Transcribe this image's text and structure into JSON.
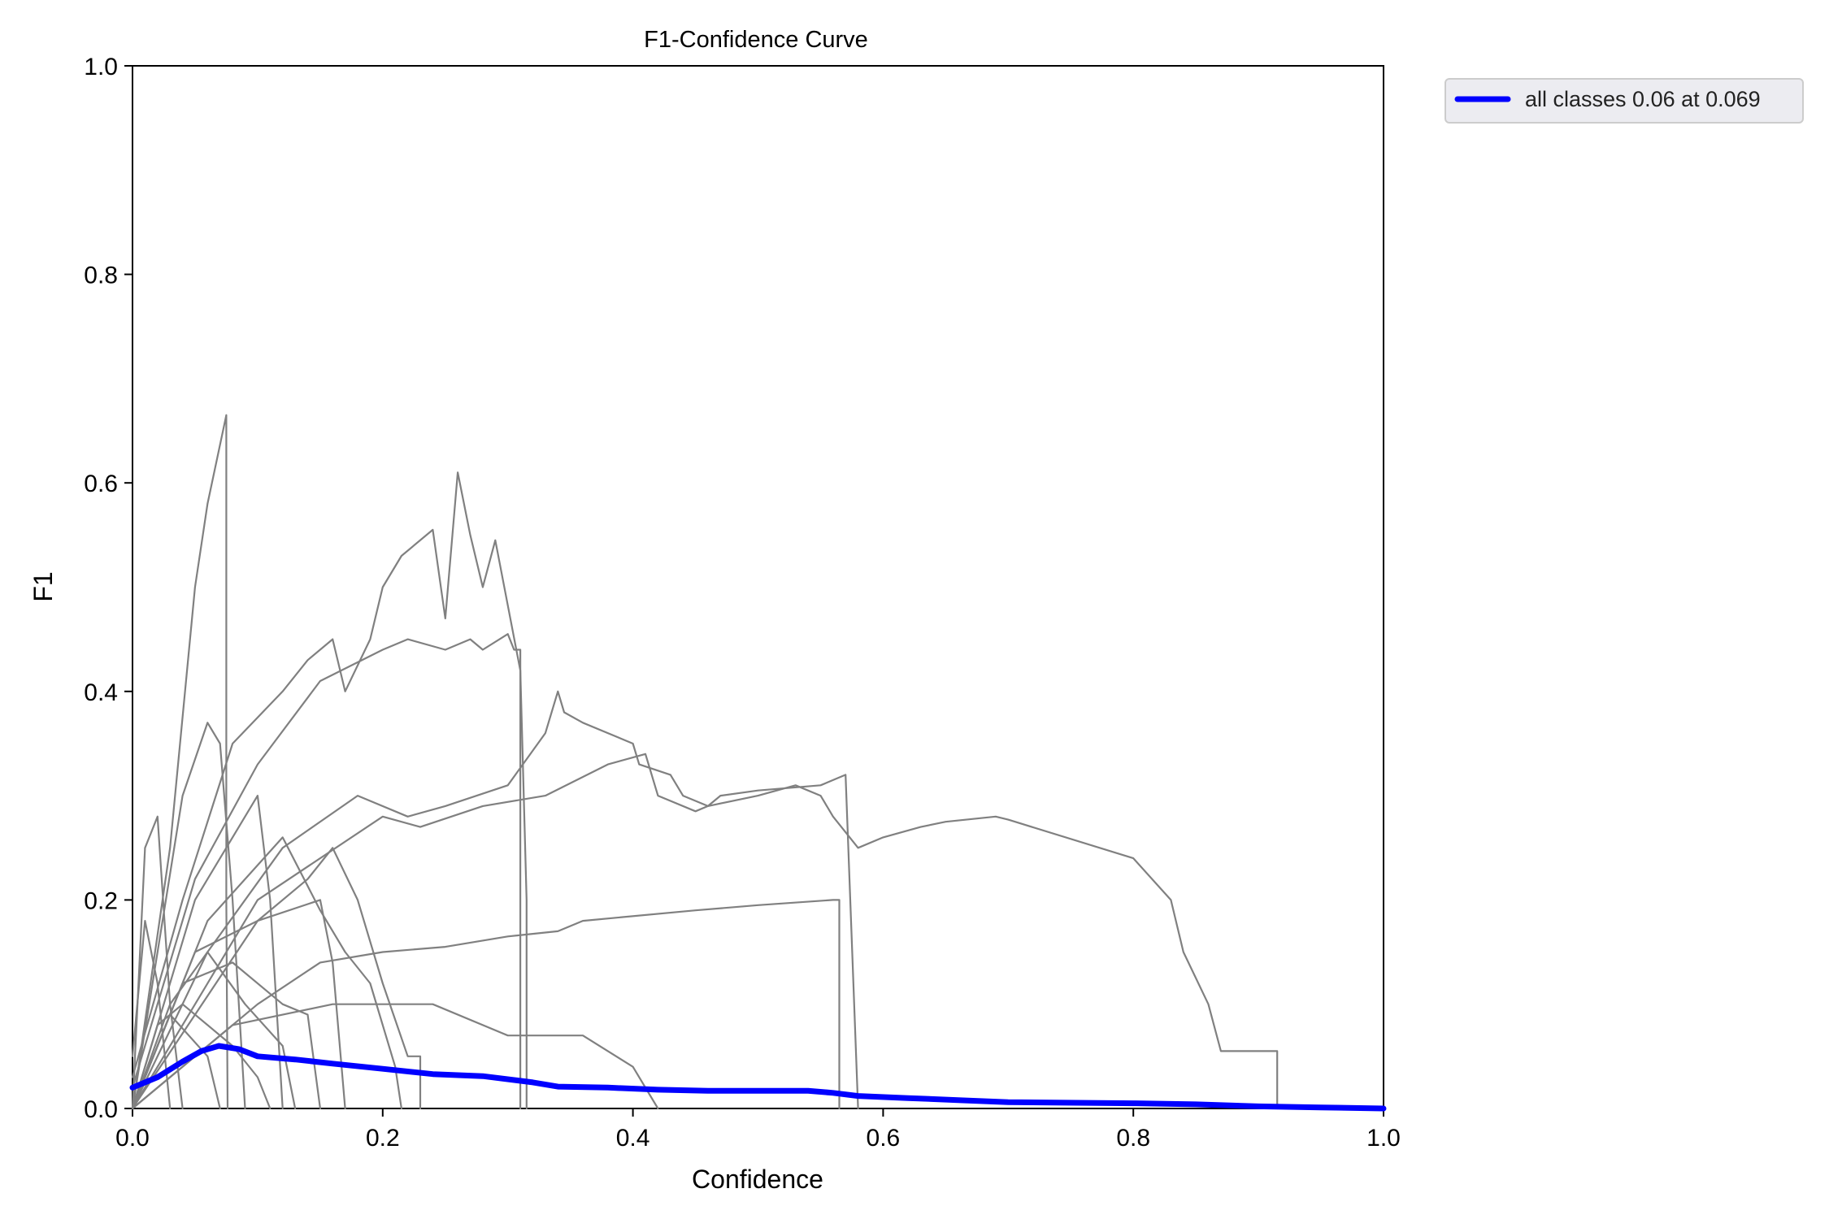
{
  "chart_data": {
    "type": "line",
    "title": "F1-Confidence Curve",
    "xlabel": "Confidence",
    "ylabel": "F1",
    "xlim": [
      0,
      1
    ],
    "ylim": [
      0,
      1
    ],
    "xticks": [
      "0.0",
      "0.2",
      "0.4",
      "0.6",
      "0.8",
      "1.0"
    ],
    "yticks": [
      "0.0",
      "0.2",
      "0.4",
      "0.6",
      "0.8",
      "1.0"
    ],
    "grid": false,
    "legend_position": "outside-top-right",
    "colors": {
      "class_curves": "#808080",
      "all_classes": "#0000ff"
    },
    "series": [
      {
        "name": "all classes 0.06 at 0.069",
        "color": "#0000ff",
        "x": [
          0.0,
          0.02,
          0.04,
          0.055,
          0.069,
          0.085,
          0.1,
          0.13,
          0.16,
          0.2,
          0.24,
          0.28,
          0.32,
          0.34,
          0.38,
          0.42,
          0.46,
          0.5,
          0.54,
          0.56,
          0.58,
          0.62,
          0.66,
          0.7,
          0.8,
          0.85,
          0.9,
          0.95,
          1.0
        ],
        "y": [
          0.02,
          0.03,
          0.045,
          0.055,
          0.06,
          0.057,
          0.05,
          0.047,
          0.043,
          0.038,
          0.033,
          0.031,
          0.025,
          0.021,
          0.02,
          0.018,
          0.017,
          0.017,
          0.017,
          0.015,
          0.012,
          0.01,
          0.008,
          0.006,
          0.005,
          0.004,
          0.002,
          0.001,
          0.0
        ]
      },
      {
        "color": "#808080",
        "x": [
          0.0,
          0.03,
          0.05,
          0.06,
          0.075,
          0.075,
          0.076
        ],
        "y": [
          0.0,
          0.25,
          0.5,
          0.58,
          0.665,
          0.2,
          0.0
        ]
      },
      {
        "color": "#808080",
        "x": [
          0.0,
          0.04,
          0.08,
          0.12,
          0.14,
          0.16,
          0.17,
          0.19,
          0.2,
          0.215,
          0.24,
          0.25,
          0.26,
          0.27,
          0.28,
          0.29,
          0.31,
          0.315,
          0.315
        ],
        "y": [
          0.03,
          0.2,
          0.35,
          0.4,
          0.43,
          0.45,
          0.4,
          0.45,
          0.5,
          0.53,
          0.555,
          0.47,
          0.61,
          0.55,
          0.5,
          0.545,
          0.42,
          0.2,
          0.0
        ]
      },
      {
        "color": "#808080",
        "x": [
          0.0,
          0.05,
          0.1,
          0.15,
          0.2,
          0.22,
          0.25,
          0.27,
          0.28,
          0.3,
          0.305,
          0.31,
          0.31
        ],
        "y": [
          0.02,
          0.22,
          0.33,
          0.41,
          0.44,
          0.45,
          0.44,
          0.45,
          0.44,
          0.455,
          0.44,
          0.44,
          0.0
        ]
      },
      {
        "color": "#808080",
        "x": [
          0.0,
          0.06,
          0.12,
          0.18,
          0.22,
          0.25,
          0.3,
          0.33,
          0.34,
          0.345,
          0.36,
          0.4,
          0.405,
          0.43,
          0.44,
          0.46,
          0.47,
          0.5,
          0.55,
          0.57,
          0.58
        ],
        "y": [
          0.0,
          0.15,
          0.25,
          0.3,
          0.28,
          0.29,
          0.31,
          0.36,
          0.4,
          0.38,
          0.37,
          0.35,
          0.33,
          0.32,
          0.3,
          0.29,
          0.3,
          0.305,
          0.31,
          0.32,
          0.0
        ]
      },
      {
        "color": "#808080",
        "x": [
          0.0,
          0.1,
          0.2,
          0.23,
          0.28,
          0.33,
          0.38,
          0.41,
          0.42,
          0.45,
          0.46,
          0.5,
          0.53,
          0.55,
          0.56,
          0.58,
          0.6,
          0.63,
          0.65,
          0.69,
          0.7,
          0.8,
          0.83,
          0.84,
          0.86,
          0.87,
          0.91,
          0.915,
          0.915
        ],
        "y": [
          0.0,
          0.2,
          0.28,
          0.27,
          0.29,
          0.3,
          0.33,
          0.34,
          0.3,
          0.285,
          0.29,
          0.3,
          0.31,
          0.3,
          0.28,
          0.25,
          0.26,
          0.27,
          0.275,
          0.28,
          0.277,
          0.24,
          0.2,
          0.15,
          0.1,
          0.055,
          0.055,
          0.055,
          0.0
        ]
      },
      {
        "color": "#808080",
        "x": [
          0.0,
          0.1,
          0.15,
          0.2,
          0.25,
          0.3,
          0.34,
          0.36,
          0.45,
          0.5,
          0.56,
          0.565,
          0.565
        ],
        "y": [
          0.0,
          0.1,
          0.14,
          0.15,
          0.155,
          0.165,
          0.17,
          0.18,
          0.19,
          0.195,
          0.2,
          0.2,
          0.0
        ]
      },
      {
        "color": "#808080",
        "x": [
          0.0,
          0.08,
          0.16,
          0.24,
          0.3,
          0.36,
          0.4,
          0.42
        ],
        "y": [
          0.0,
          0.08,
          0.1,
          0.1,
          0.07,
          0.07,
          0.04,
          0.0
        ]
      },
      {
        "color": "#808080",
        "x": [
          0.0,
          0.1,
          0.14,
          0.16,
          0.18,
          0.2,
          0.22,
          0.23,
          0.23
        ],
        "y": [
          0.0,
          0.18,
          0.22,
          0.25,
          0.2,
          0.12,
          0.05,
          0.05,
          0.0
        ]
      },
      {
        "color": "#808080",
        "x": [
          0.0,
          0.06,
          0.12,
          0.15,
          0.17,
          0.19,
          0.21,
          0.215
        ],
        "y": [
          0.0,
          0.18,
          0.26,
          0.19,
          0.15,
          0.12,
          0.04,
          0.0
        ]
      },
      {
        "color": "#808080",
        "x": [
          0.0,
          0.05,
          0.1,
          0.15,
          0.16,
          0.17
        ],
        "y": [
          0.0,
          0.15,
          0.18,
          0.2,
          0.14,
          0.0
        ]
      },
      {
        "color": "#808080",
        "x": [
          0.0,
          0.04,
          0.08,
          0.12,
          0.14,
          0.15
        ],
        "y": [
          0.0,
          0.12,
          0.14,
          0.1,
          0.09,
          0.0
        ]
      },
      {
        "color": "#808080",
        "x": [
          0.0,
          0.03,
          0.06,
          0.09,
          0.12,
          0.13
        ],
        "y": [
          0.0,
          0.1,
          0.15,
          0.1,
          0.06,
          0.0
        ]
      },
      {
        "color": "#808080",
        "x": [
          0.0,
          0.02,
          0.04,
          0.08,
          0.1,
          0.11
        ],
        "y": [
          0.0,
          0.08,
          0.1,
          0.06,
          0.03,
          0.0
        ]
      },
      {
        "color": "#808080",
        "x": [
          0.0,
          0.01,
          0.02,
          0.03,
          0.04
        ],
        "y": [
          0.0,
          0.25,
          0.28,
          0.1,
          0.0
        ]
      },
      {
        "color": "#808080",
        "x": [
          0.0,
          0.01,
          0.02,
          0.03
        ],
        "y": [
          0.05,
          0.18,
          0.12,
          0.0
        ]
      },
      {
        "color": "#808080",
        "x": [
          0.0,
          0.04,
          0.06,
          0.07,
          0.08,
          0.09
        ],
        "y": [
          0.0,
          0.3,
          0.37,
          0.35,
          0.2,
          0.0
        ]
      },
      {
        "color": "#808080",
        "x": [
          0.0,
          0.05,
          0.1,
          0.11,
          0.12
        ],
        "y": [
          0.0,
          0.2,
          0.3,
          0.2,
          0.0
        ]
      },
      {
        "color": "#808080",
        "x": [
          0.0,
          0.03,
          0.06,
          0.07
        ],
        "y": [
          0.0,
          0.09,
          0.05,
          0.0
        ]
      }
    ]
  }
}
